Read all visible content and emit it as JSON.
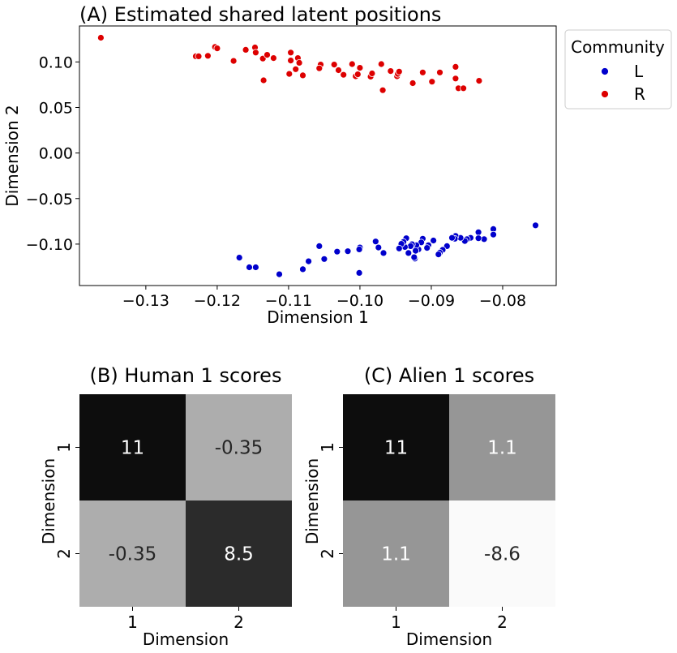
{
  "chart_data": [
    {
      "type": "scatter",
      "title": "(A) Estimated shared latent positions",
      "xlabel": "Dimension 1",
      "ylabel": "Dimension 2",
      "xlim": [
        -0.1393,
        -0.0725
      ],
      "ylim": [
        -0.1455,
        0.1395
      ],
      "xticks": [
        -0.13,
        -0.12,
        -0.11,
        -0.1,
        -0.09,
        -0.08
      ],
      "xtick_labels": [
        "−0.13",
        "−0.12",
        "−0.11",
        "−0.10",
        "−0.09",
        "−0.08"
      ],
      "yticks": [
        0.1,
        0.05,
        0.0,
        -0.05,
        -0.1
      ],
      "ytick_labels": [
        "0.10",
        "0.05",
        "0.00",
        "−0.05",
        "−0.10"
      ],
      "legend": {
        "title": "Community",
        "placement": "outside-top-right"
      },
      "grid": false,
      "series": [
        {
          "name": "L",
          "color": "#0000cc",
          "points": [
            [
              -0.0754,
              -0.0794
            ],
            [
              -0.0813,
              -0.0835
            ],
            [
              -0.0813,
              -0.0896
            ],
            [
              -0.0826,
              -0.0946
            ],
            [
              -0.0834,
              -0.087
            ],
            [
              -0.0834,
              -0.0936
            ],
            [
              -0.0845,
              -0.0931
            ],
            [
              -0.085,
              -0.0946
            ],
            [
              -0.0853,
              -0.0966
            ],
            [
              -0.0859,
              -0.0931
            ],
            [
              -0.0866,
              -0.091
            ],
            [
              -0.0867,
              -0.0941
            ],
            [
              -0.0871,
              -0.0931
            ],
            [
              -0.0878,
              -0.1022
            ],
            [
              -0.0884,
              -0.1063
            ],
            [
              -0.0888,
              -0.1093
            ],
            [
              -0.089,
              -0.1113
            ],
            [
              -0.0897,
              -0.0961
            ],
            [
              -0.0904,
              -0.1012
            ],
            [
              -0.0906,
              -0.1042
            ],
            [
              -0.0912,
              -0.0941
            ],
            [
              -0.0914,
              -0.0981
            ],
            [
              -0.0918,
              -0.1058
            ],
            [
              -0.0921,
              -0.1012
            ],
            [
              -0.0922,
              -0.1073
            ],
            [
              -0.0923,
              -0.1159
            ],
            [
              -0.0924,
              -0.1144
            ],
            [
              -0.0927,
              -0.1002
            ],
            [
              -0.0929,
              -0.1022
            ],
            [
              -0.0932,
              -0.1098
            ],
            [
              -0.0935,
              -0.0936
            ],
            [
              -0.0937,
              -0.1032
            ],
            [
              -0.0939,
              -0.0976
            ],
            [
              -0.0942,
              -0.0997
            ],
            [
              -0.0945,
              -0.1048
            ],
            [
              -0.0967,
              -0.1098
            ],
            [
              -0.0974,
              -0.1037
            ],
            [
              -0.0978,
              -0.0971
            ],
            [
              -0.1,
              -0.1037
            ],
            [
              -0.1001,
              -0.1058
            ],
            [
              -0.1001,
              -0.1316
            ],
            [
              -0.1017,
              -0.1078
            ],
            [
              -0.1032,
              -0.1083
            ],
            [
              -0.105,
              -0.1164
            ],
            [
              -0.1057,
              -0.1022
            ],
            [
              -0.1072,
              -0.1189
            ],
            [
              -0.108,
              -0.1276
            ],
            [
              -0.1113,
              -0.1331
            ],
            [
              -0.1146,
              -0.1255
            ],
            [
              -0.1155,
              -0.1255
            ],
            [
              -0.1169,
              -0.1149
            ]
          ]
        },
        {
          "name": "R",
          "color": "#dd0000",
          "points": [
            [
              -0.1363,
              0.1266
            ],
            [
              -0.123,
              0.1062
            ],
            [
              -0.1226,
              0.1062
            ],
            [
              -0.1213,
              0.1067
            ],
            [
              -0.1203,
              0.1164
            ],
            [
              -0.12,
              0.1149
            ],
            [
              -0.1177,
              0.1011
            ],
            [
              -0.116,
              0.1133
            ],
            [
              -0.1147,
              0.1159
            ],
            [
              -0.1146,
              0.1103
            ],
            [
              -0.1136,
              0.1037
            ],
            [
              -0.1135,
              0.0798
            ],
            [
              -0.113,
              0.1078
            ],
            [
              -0.1121,
              0.1042
            ],
            [
              -0.1097,
              0.1103
            ],
            [
              -0.1097,
              0.1016
            ],
            [
              -0.1099,
              0.0869
            ],
            [
              -0.109,
              0.092
            ],
            [
              -0.1087,
              0.1042
            ],
            [
              -0.1085,
              0.0991
            ],
            [
              -0.108,
              0.0853
            ],
            [
              -0.1055,
              0.0971
            ],
            [
              -0.1057,
              0.093
            ],
            [
              -0.1036,
              0.0971
            ],
            [
              -0.103,
              0.091
            ],
            [
              -0.1023,
              0.0859
            ],
            [
              -0.1011,
              0.0976
            ],
            [
              -0.1006,
              0.0843
            ],
            [
              -0.1003,
              0.0864
            ],
            [
              -0.1,
              0.0935
            ],
            [
              -0.0985,
              0.0838
            ],
            [
              -0.0983,
              0.0874
            ],
            [
              -0.097,
              0.0976
            ],
            [
              -0.0968,
              0.069
            ],
            [
              -0.0957,
              0.09
            ],
            [
              -0.0948,
              0.0843
            ],
            [
              -0.0947,
              0.0869
            ],
            [
              -0.0945,
              0.0894
            ],
            [
              -0.0926,
              0.0767
            ],
            [
              -0.0912,
              0.0885
            ],
            [
              -0.0899,
              0.0783
            ],
            [
              -0.0888,
              0.0885
            ],
            [
              -0.0866,
              0.0946
            ],
            [
              -0.0866,
              0.0818
            ],
            [
              -0.0862,
              0.0711
            ],
            [
              -0.0855,
              0.0711
            ],
            [
              -0.0833,
              0.0793
            ]
          ]
        }
      ]
    },
    {
      "type": "heatmap",
      "title": "(B) Human 1 scores",
      "xlabel": "Dimension",
      "ylabel": "Dimension",
      "xtick_labels": [
        "1",
        "2"
      ],
      "ytick_labels": [
        "1",
        "2"
      ],
      "values": [
        [
          11,
          -0.35
        ],
        [
          -0.35,
          8.5
        ]
      ],
      "value_labels": [
        [
          "11",
          "-0.35"
        ],
        [
          "-0.35",
          "8.5"
        ]
      ],
      "cell_colors": [
        [
          "#0d0d0d",
          "#adadad"
        ],
        [
          "#adadad",
          "#2b2b2b"
        ]
      ],
      "label_colors": [
        [
          "#ffffff",
          "#262626"
        ],
        [
          "#262626",
          "#ffffff"
        ]
      ]
    },
    {
      "type": "heatmap",
      "title": "(C) Alien 1 scores",
      "xlabel": "Dimension",
      "ylabel": "Dimension",
      "xtick_labels": [
        "1",
        "2"
      ],
      "ytick_labels": [
        "1",
        "2"
      ],
      "values": [
        [
          11,
          1.1
        ],
        [
          1.1,
          -8.6
        ]
      ],
      "value_labels": [
        [
          "11",
          "1.1"
        ],
        [
          "1.1",
          "-8.6"
        ]
      ],
      "cell_colors": [
        [
          "#0d0d0d",
          "#969696"
        ],
        [
          "#969696",
          "#fafafa"
        ]
      ],
      "label_colors": [
        [
          "#ffffff",
          "#ffffff"
        ],
        [
          "#ffffff",
          "#262626"
        ]
      ]
    }
  ]
}
